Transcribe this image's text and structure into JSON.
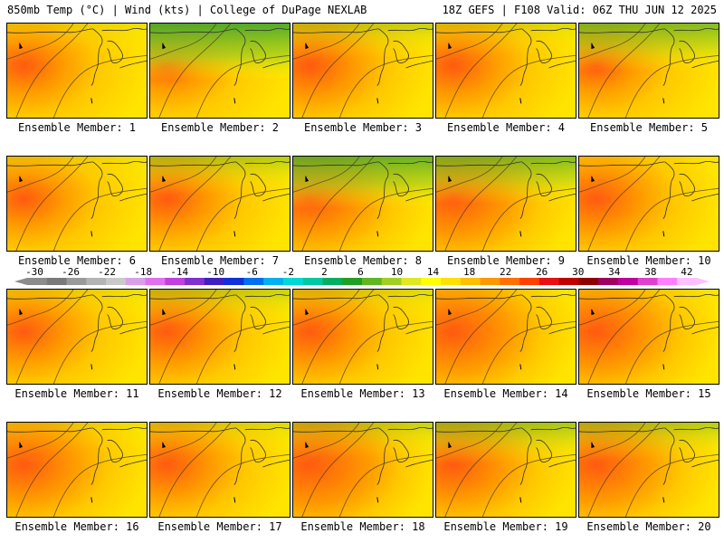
{
  "header": {
    "left": "850mb Temp (°C) | Wind (kts) | College of DuPage NEXLAB",
    "right": "18Z GEFS | F108 Valid: 06Z THU JUN 12 2025"
  },
  "colorbar": {
    "tick_labels": [
      "-30",
      "-26",
      "-22",
      "-18",
      "-14",
      "-10",
      "-6",
      "-2",
      "2",
      "6",
      "10",
      "14",
      "18",
      "22",
      "26",
      "30",
      "34",
      "38",
      "42"
    ],
    "colors": [
      "#8c8c8c",
      "#7a7a7a",
      "#9a9a9a",
      "#b4b4b4",
      "#c9c9c9",
      "#d8a0e8",
      "#e070f0",
      "#c040e0",
      "#8030d0",
      "#4020c0",
      "#1030d8",
      "#0070f0",
      "#00b0f0",
      "#00d8d8",
      "#00c8a0",
      "#00b060",
      "#20a020",
      "#60b820",
      "#a0d020",
      "#e0e820",
      "#ffff00",
      "#ffe000",
      "#ffc000",
      "#ff9800",
      "#ff7000",
      "#ff4000",
      "#e81010",
      "#c00000",
      "#900000",
      "#a00060",
      "#c000a0",
      "#e040d0",
      "#ff80ff",
      "#ffc0ff"
    ]
  },
  "panels": [
    {
      "caption": "Ensemble Member: 1",
      "green": 0.05,
      "warm": 0.35
    },
    {
      "caption": "Ensemble Member: 2",
      "green": 0.35,
      "warm": 0.25
    },
    {
      "caption": "Ensemble Member: 3",
      "green": 0.12,
      "warm": 0.45
    },
    {
      "caption": "Ensemble Member: 4",
      "green": 0.08,
      "warm": 0.4
    },
    {
      "caption": "Ensemble Member: 5",
      "green": 0.25,
      "warm": 0.3
    },
    {
      "caption": "Ensemble Member: 6",
      "green": 0.05,
      "warm": 0.35
    },
    {
      "caption": "Ensemble Member: 7",
      "green": 0.15,
      "warm": 0.4
    },
    {
      "caption": "Ensemble Member: 8",
      "green": 0.3,
      "warm": 0.55
    },
    {
      "caption": "Ensemble Member: 9",
      "green": 0.25,
      "warm": 0.6
    },
    {
      "caption": "Ensemble Member: 10",
      "green": 0.02,
      "warm": 0.45
    },
    {
      "caption": "Ensemble Member: 11",
      "green": 0.05,
      "warm": 0.4
    },
    {
      "caption": "Ensemble Member: 12",
      "green": 0.12,
      "warm": 0.45
    },
    {
      "caption": "Ensemble Member: 13",
      "green": 0.08,
      "warm": 0.45
    },
    {
      "caption": "Ensemble Member: 14",
      "green": 0.02,
      "warm": 0.65
    },
    {
      "caption": "Ensemble Member: 15",
      "green": 0.02,
      "warm": 0.6
    },
    {
      "caption": "Ensemble Member: 16",
      "green": 0.05,
      "warm": 0.55
    },
    {
      "caption": "Ensemble Member: 17",
      "green": 0.08,
      "warm": 0.45
    },
    {
      "caption": "Ensemble Member: 18",
      "green": 0.12,
      "warm": 0.7
    },
    {
      "caption": "Ensemble Member: 19",
      "green": 0.18,
      "warm": 0.55
    },
    {
      "caption": "Ensemble Member: 20",
      "green": 0.15,
      "warm": 0.6
    }
  ]
}
